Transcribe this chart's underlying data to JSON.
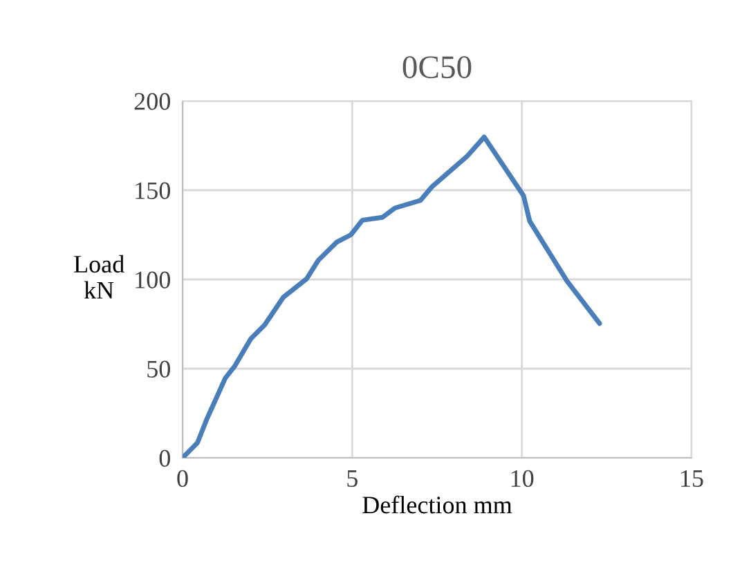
{
  "chart_data": {
    "type": "line",
    "title": "0C50",
    "xlabel": "Deflection mm",
    "ylabel": "Load\nkN",
    "xlim": [
      0,
      15
    ],
    "xticks": [
      0,
      5,
      10,
      15
    ],
    "ylim": [
      0,
      200
    ],
    "yticks": [
      0,
      50,
      100,
      150,
      200
    ],
    "grid": true,
    "legend": false,
    "marker": "none",
    "line_style": "solid",
    "series": [
      {
        "color": "#4a7ebb",
        "x": [
          0,
          0.44,
          0.71,
          1.26,
          1.53,
          2.01,
          2.42,
          2.97,
          3.66,
          4.0,
          4.55,
          4.96,
          5.3,
          5.89,
          6.26,
          7.01,
          7.36,
          8.38,
          8.89,
          10.05,
          10.23,
          11.33,
          12.29
        ],
        "values": [
          0,
          8.5,
          21.5,
          44.7,
          51.2,
          66.7,
          74.5,
          90,
          100.4,
          110.7,
          121,
          125,
          133.2,
          134.8,
          140,
          144.3,
          152.1,
          168.9,
          179.8,
          146.9,
          132.7,
          99.1,
          75.3
        ]
      }
    ]
  }
}
